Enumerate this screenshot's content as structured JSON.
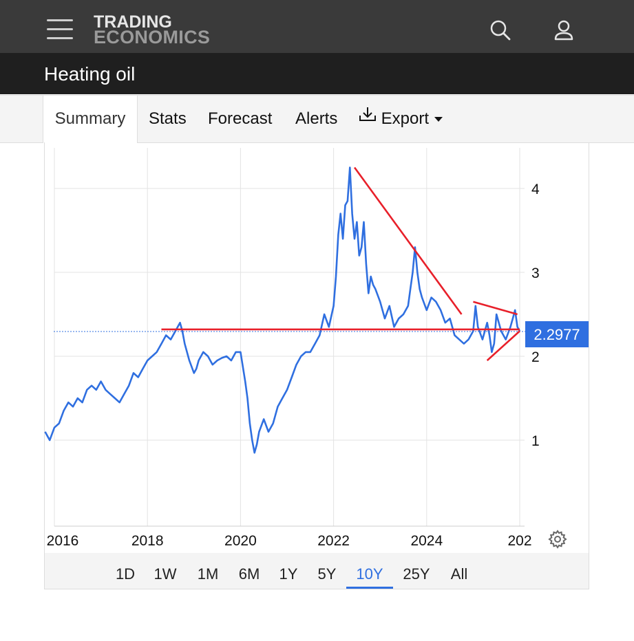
{
  "header": {
    "logo_line1": "TRADING",
    "logo_line2": "ECONOMICS",
    "menu_icon": "hamburger-menu-icon",
    "search_icon": "search-icon",
    "user_icon": "user-icon"
  },
  "page": {
    "title": "Heating oil"
  },
  "tabs": [
    {
      "label": "Summary",
      "active": true
    },
    {
      "label": "Stats"
    },
    {
      "label": "Forecast"
    },
    {
      "label": "Alerts"
    },
    {
      "label": "Export"
    }
  ],
  "export_icon": "download-icon",
  "ranges": [
    "1D",
    "1W",
    "1M",
    "6M",
    "1Y",
    "5Y",
    "10Y",
    "25Y",
    "All"
  ],
  "selected_range": "10Y",
  "settings_icon": "gear-icon",
  "colors": {
    "series": "#2f6fe0",
    "trendlines": "#e8202a",
    "price_tag": "#2f6fe0"
  },
  "chart_data": {
    "type": "line",
    "x_tick_labels": [
      "2016",
      "2018",
      "2020",
      "2022",
      "2024",
      "202"
    ],
    "y_tick_labels": [
      "1",
      "2",
      "3",
      "4"
    ],
    "ylim": [
      0,
      4.4
    ],
    "grid": true,
    "current_value_label": "2.2977",
    "series": [
      {
        "x": [
          2015.8,
          2015.9,
          2016.0,
          2016.1,
          2016.2,
          2016.3,
          2016.4,
          2016.5,
          2016.6,
          2016.7,
          2016.8,
          2016.9,
          2017.0,
          2017.1,
          2017.2,
          2017.3,
          2017.4,
          2017.5,
          2017.6,
          2017.7,
          2017.8,
          2017.9,
          2018.0,
          2018.1,
          2018.2,
          2018.3,
          2018.4,
          2018.5,
          2018.6,
          2018.7,
          2018.75,
          2018.8,
          2018.9,
          2019.0,
          2019.05,
          2019.1,
          2019.2,
          2019.3,
          2019.4,
          2019.5,
          2019.6,
          2019.7,
          2019.8,
          2019.9,
          2020.0,
          2020.1,
          2020.15,
          2020.2,
          2020.25,
          2020.3,
          2020.35,
          2020.4,
          2020.5,
          2020.6,
          2020.7,
          2020.8,
          2020.9,
          2021.0,
          2021.1,
          2021.2,
          2021.3,
          2021.4,
          2021.5,
          2021.6,
          2021.7,
          2021.8,
          2021.9,
          2022.0,
          2022.05,
          2022.1,
          2022.15,
          2022.2,
          2022.25,
          2022.3,
          2022.35,
          2022.4,
          2022.45,
          2022.5,
          2022.55,
          2022.6,
          2022.65,
          2022.7,
          2022.75,
          2022.8,
          2022.85,
          2022.9,
          2023.0,
          2023.1,
          2023.2,
          2023.3,
          2023.4,
          2023.5,
          2023.6,
          2023.65,
          2023.7,
          2023.75,
          2023.8,
          2023.85,
          2023.9,
          2024.0,
          2024.1,
          2024.2,
          2024.3,
          2024.4,
          2024.5,
          2024.6,
          2024.7,
          2024.8,
          2024.9,
          2025.0,
          2025.05,
          2025.1,
          2025.2,
          2025.3,
          2025.35,
          2025.4,
          2025.45,
          2025.5,
          2025.6,
          2025.7,
          2025.8,
          2025.85,
          2025.9,
          2025.95,
          2026.0
        ],
        "values": [
          1.1,
          1.0,
          1.15,
          1.2,
          1.35,
          1.45,
          1.4,
          1.5,
          1.45,
          1.6,
          1.65,
          1.6,
          1.7,
          1.6,
          1.55,
          1.5,
          1.45,
          1.55,
          1.65,
          1.8,
          1.75,
          1.85,
          1.95,
          2.0,
          2.05,
          2.15,
          2.25,
          2.2,
          2.3,
          2.4,
          2.3,
          2.15,
          1.95,
          1.8,
          1.85,
          1.95,
          2.05,
          2.0,
          1.9,
          1.95,
          1.98,
          2.0,
          1.95,
          2.05,
          2.05,
          1.7,
          1.5,
          1.2,
          1.0,
          0.85,
          0.95,
          1.1,
          1.25,
          1.1,
          1.2,
          1.4,
          1.5,
          1.6,
          1.75,
          1.9,
          2.0,
          2.05,
          2.05,
          2.15,
          2.25,
          2.5,
          2.35,
          2.6,
          2.95,
          3.45,
          3.7,
          3.4,
          3.8,
          3.85,
          4.25,
          3.7,
          3.4,
          3.6,
          3.2,
          3.3,
          3.6,
          3.1,
          2.75,
          2.95,
          2.85,
          2.8,
          2.65,
          2.45,
          2.6,
          2.35,
          2.45,
          2.5,
          2.6,
          2.8,
          3.0,
          3.3,
          3.0,
          2.8,
          2.7,
          2.55,
          2.7,
          2.65,
          2.55,
          2.4,
          2.45,
          2.25,
          2.2,
          2.15,
          2.2,
          2.3,
          2.6,
          2.35,
          2.2,
          2.4,
          2.25,
          2.05,
          2.15,
          2.5,
          2.3,
          2.2,
          2.35,
          2.45,
          2.55,
          2.35,
          2.3
        ]
      }
    ],
    "trendlines": [
      {
        "x": [
          2018.3,
          2026.0
        ],
        "y": [
          2.32,
          2.32
        ]
      },
      {
        "x": [
          2022.45,
          2024.75
        ],
        "y": [
          4.25,
          2.5
        ]
      },
      {
        "x": [
          2025.0,
          2025.95
        ],
        "y": [
          2.65,
          2.5
        ]
      },
      {
        "x": [
          2025.3,
          2026.0
        ],
        "y": [
          1.95,
          2.3
        ]
      }
    ]
  }
}
